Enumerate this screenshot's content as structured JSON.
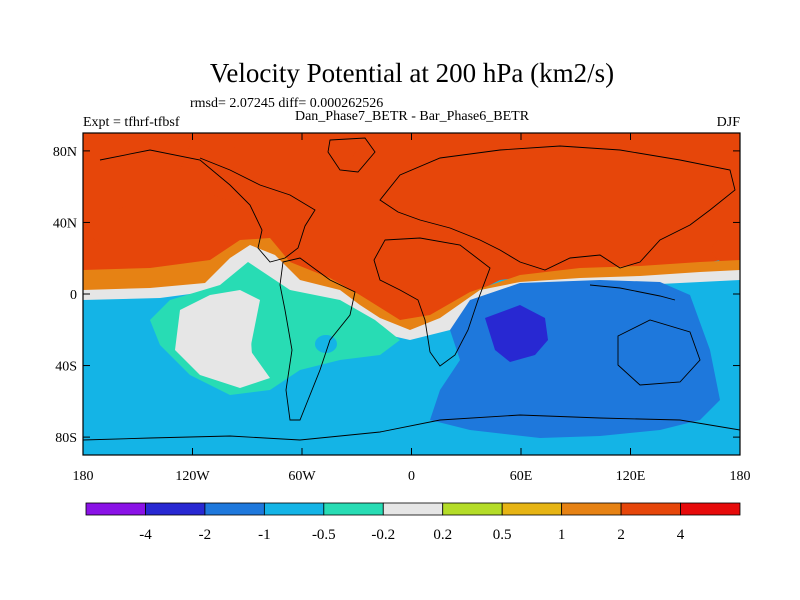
{
  "chart_data": {
    "type": "contour-map",
    "title": "Velocity Potential at 200 hPa (km2/s)",
    "subtitle": "rmsd= 2.07245 diff= 0.000262526",
    "center_string": "Dan_Phase7_BETR - Bar_Phase6_BETR",
    "left_string": "Expt = tfhrf-tfbsf",
    "right_string": "DJF",
    "x_axis": {
      "range": [
        -180,
        180
      ],
      "ticks": [
        {
          "value": -180,
          "label": "180"
        },
        {
          "value": -120,
          "label": "120W"
        },
        {
          "value": -60,
          "label": "60W"
        },
        {
          "value": 0,
          "label": "0"
        },
        {
          "value": 60,
          "label": "60E"
        },
        {
          "value": 120,
          "label": "120E"
        },
        {
          "value": 180,
          "label": "180"
        }
      ]
    },
    "y_axis": {
      "range": [
        -90,
        90
      ],
      "ticks": [
        {
          "value": 80,
          "label": "80N"
        },
        {
          "value": 40,
          "label": "40N"
        },
        {
          "value": 0,
          "label": "0"
        },
        {
          "value": -40,
          "label": "40S"
        },
        {
          "value": -80,
          "label": "80S"
        }
      ]
    },
    "colorbar": {
      "boundaries": [
        -4,
        -2,
        -1,
        -0.5,
        -0.2,
        0.2,
        0.5,
        1,
        2,
        4
      ],
      "labels": [
        "-4",
        "-2",
        "-1",
        "-0.5",
        "-0.2",
        "0.2",
        "0.5",
        "1",
        "2",
        "4"
      ],
      "colors": [
        "#8a12e6",
        "#2828d2",
        "#1e78dc",
        "#14b4e6",
        "#28dcb4",
        "#e6e6e6",
        "#b4dc28",
        "#e6b414",
        "#e68214",
        "#e6460a",
        "#e60a0a"
      ]
    },
    "regions": [
      {
        "name": "north-positive-band",
        "level": 2
      },
      {
        "name": "north-atlantic-pacific-high",
        "level": 3
      },
      {
        "name": "north-orange-region",
        "level": 2
      },
      {
        "name": "equatorial-yellow-band",
        "level": 1
      },
      {
        "name": "zero-line-band",
        "level": 0
      },
      {
        "name": "southern-negative-field",
        "level": -1
      },
      {
        "name": "south-pacific-cyan",
        "level": -0.5
      },
      {
        "name": "indian-ocean-dark-blue",
        "level": -2
      },
      {
        "name": "indian-ocean-minimum",
        "level": -4
      }
    ]
  }
}
